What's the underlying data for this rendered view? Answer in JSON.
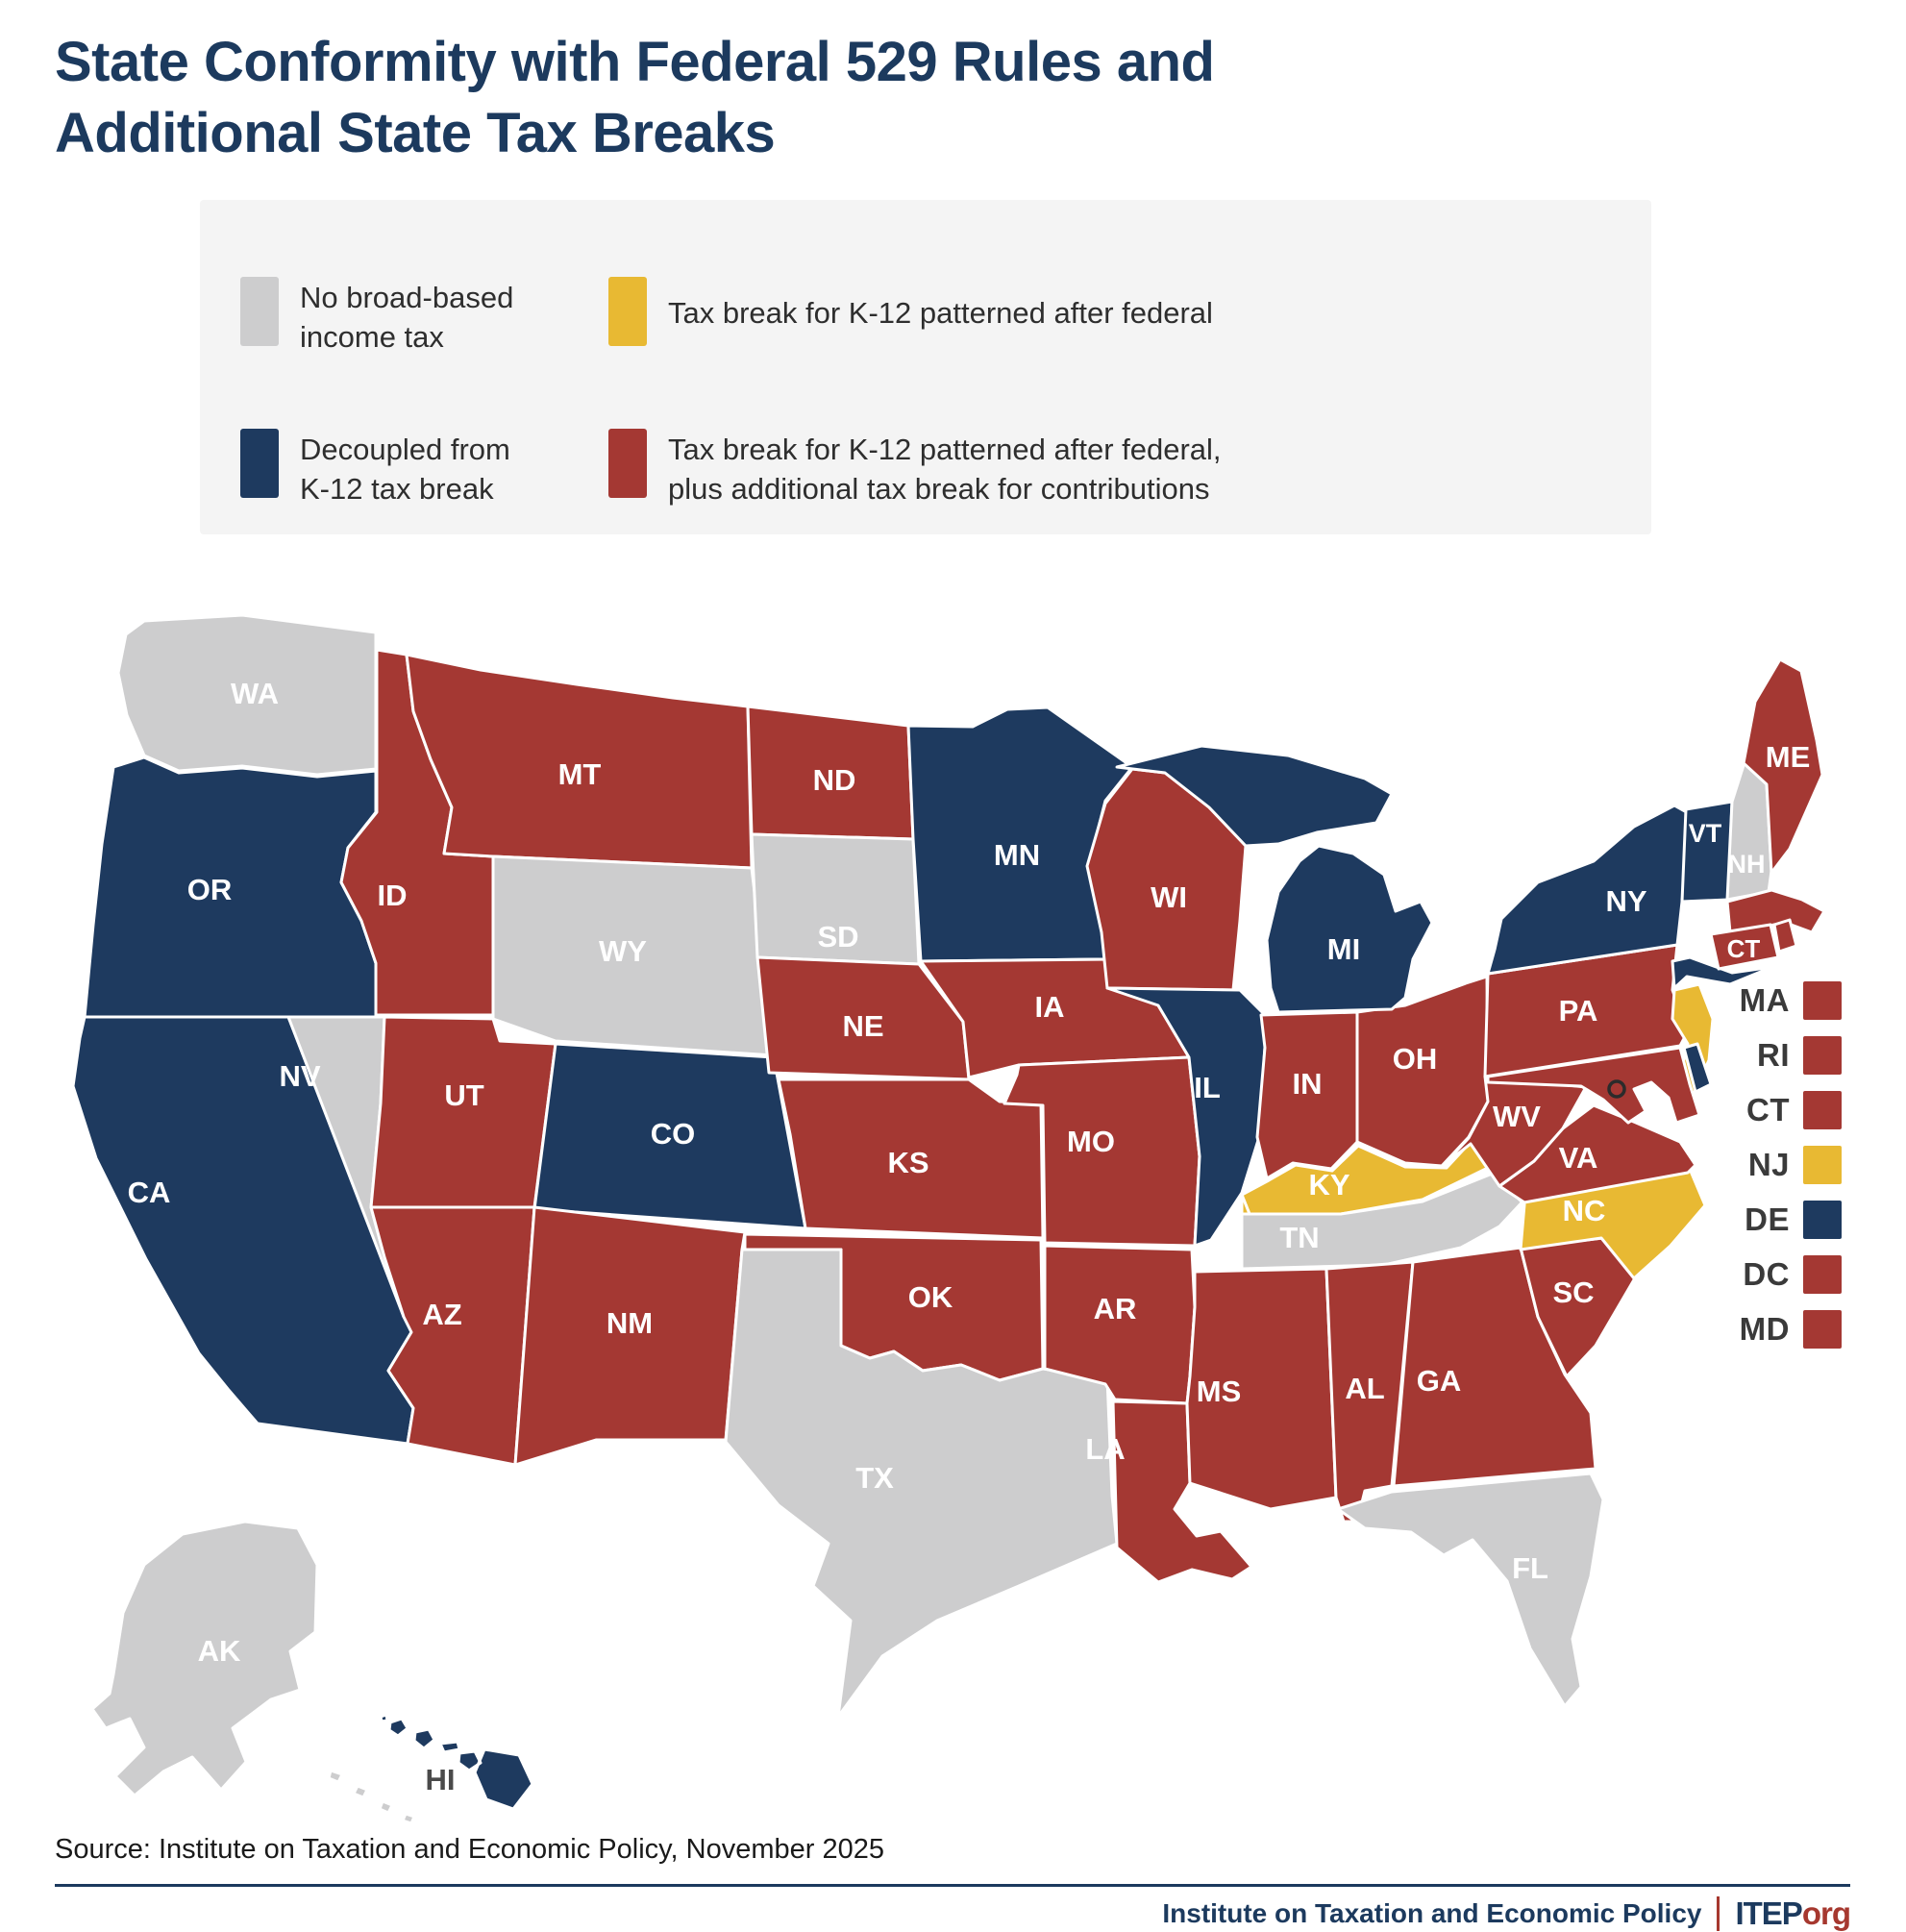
{
  "title": {
    "line1": "State Conformity with Federal 529 Rules and",
    "line2": "Additional State Tax Breaks"
  },
  "colors": {
    "no_income_tax": "#CDCDCE",
    "k12_federal": "#E8B933",
    "decoupled": "#1E3A5F",
    "k12_federal_plus": "#A43833",
    "legend_bg": "#F4F4F4",
    "title_navy": "#1C3A5E",
    "footer_red": "#A6382F",
    "label_white": "#FFFFFF",
    "label_dark": "#4A4A4A"
  },
  "legend": {
    "items": [
      {
        "key": "no_income_tax",
        "lines": [
          "No broad-based",
          "income tax"
        ]
      },
      {
        "key": "k12_federal",
        "lines": [
          "Tax break for K-12 patterned after federal"
        ]
      },
      {
        "key": "decoupled",
        "lines": [
          "Decoupled from",
          "K-12 tax break"
        ]
      },
      {
        "key": "k12_federal_plus",
        "lines": [
          "Tax break for K-12 patterned after federal,",
          "plus additional tax break for contributions"
        ]
      }
    ]
  },
  "map": {
    "states": [
      {
        "abbr": "WA",
        "category": "no_income_tax",
        "label": true
      },
      {
        "abbr": "OR",
        "category": "decoupled",
        "label": true
      },
      {
        "abbr": "CA",
        "category": "decoupled",
        "label": true
      },
      {
        "abbr": "NV",
        "category": "no_income_tax",
        "label": true
      },
      {
        "abbr": "ID",
        "category": "k12_federal_plus",
        "label": true
      },
      {
        "abbr": "MT",
        "category": "k12_federal_plus",
        "label": true
      },
      {
        "abbr": "WY",
        "category": "no_income_tax",
        "label": true
      },
      {
        "abbr": "UT",
        "category": "k12_federal_plus",
        "label": true
      },
      {
        "abbr": "CO",
        "category": "decoupled",
        "label": true
      },
      {
        "abbr": "AZ",
        "category": "k12_federal_plus",
        "label": true
      },
      {
        "abbr": "NM",
        "category": "k12_federal_plus",
        "label": true
      },
      {
        "abbr": "ND",
        "category": "k12_federal_plus",
        "label": true
      },
      {
        "abbr": "SD",
        "category": "no_income_tax",
        "label": true
      },
      {
        "abbr": "NE",
        "category": "k12_federal_plus",
        "label": true
      },
      {
        "abbr": "KS",
        "category": "k12_federal_plus",
        "label": true
      },
      {
        "abbr": "OK",
        "category": "k12_federal_plus",
        "label": true
      },
      {
        "abbr": "TX",
        "category": "no_income_tax",
        "label": true
      },
      {
        "abbr": "MN",
        "category": "decoupled",
        "label": true
      },
      {
        "abbr": "IA",
        "category": "k12_federal_plus",
        "label": true
      },
      {
        "abbr": "MO",
        "category": "k12_federal_plus",
        "label": true
      },
      {
        "abbr": "AR",
        "category": "k12_federal_plus",
        "label": true
      },
      {
        "abbr": "LA",
        "category": "k12_federal_plus",
        "label": true
      },
      {
        "abbr": "WI",
        "category": "k12_federal_plus",
        "label": true
      },
      {
        "abbr": "IL",
        "category": "decoupled",
        "label": true
      },
      {
        "abbr": "IN",
        "category": "k12_federal_plus",
        "label": true
      },
      {
        "abbr": "OH",
        "category": "k12_federal_plus",
        "label": true
      },
      {
        "abbr": "MI",
        "category": "decoupled",
        "label": true
      },
      {
        "abbr": "KY",
        "category": "k12_federal",
        "label": true
      },
      {
        "abbr": "TN",
        "category": "no_income_tax",
        "label": true
      },
      {
        "abbr": "MS",
        "category": "k12_federal_plus",
        "label": true
      },
      {
        "abbr": "AL",
        "category": "k12_federal_plus",
        "label": true
      },
      {
        "abbr": "GA",
        "category": "k12_federal_plus",
        "label": true
      },
      {
        "abbr": "SC",
        "category": "k12_federal_plus",
        "label": true
      },
      {
        "abbr": "FL",
        "category": "no_income_tax",
        "label": true
      },
      {
        "abbr": "NC",
        "category": "k12_federal",
        "label": true
      },
      {
        "abbr": "VA",
        "category": "k12_federal_plus",
        "label": true
      },
      {
        "abbr": "WV",
        "category": "k12_federal_plus",
        "label": true
      },
      {
        "abbr": "KY2",
        "category": "k12_federal",
        "label": false
      },
      {
        "abbr": "PA",
        "category": "k12_federal_plus",
        "label": true
      },
      {
        "abbr": "NY",
        "category": "decoupled",
        "label": true
      },
      {
        "abbr": "VT",
        "category": "decoupled",
        "label": true
      },
      {
        "abbr": "NH",
        "category": "no_income_tax",
        "label": true
      },
      {
        "abbr": "ME",
        "category": "k12_federal_plus",
        "label": true
      },
      {
        "abbr": "MA",
        "category": "k12_federal_plus",
        "label": false
      },
      {
        "abbr": "RI",
        "category": "k12_federal_plus",
        "label": false
      },
      {
        "abbr": "CT",
        "category": "k12_federal_plus",
        "label": true
      },
      {
        "abbr": "NJ",
        "category": "k12_federal",
        "label": false
      },
      {
        "abbr": "DE",
        "category": "decoupled",
        "label": false
      },
      {
        "abbr": "MD",
        "category": "k12_federal_plus",
        "label": false
      },
      {
        "abbr": "AK",
        "category": "no_income_tax",
        "label": true
      },
      {
        "abbr": "HI",
        "category": "decoupled",
        "label": true
      }
    ],
    "dc_marker": {
      "abbr": "DC",
      "category": "k12_federal_plus"
    }
  },
  "side_legend": [
    {
      "abbr": "MA",
      "category": "k12_federal_plus"
    },
    {
      "abbr": "RI",
      "category": "k12_federal_plus"
    },
    {
      "abbr": "CT",
      "category": "k12_federal_plus"
    },
    {
      "abbr": "NJ",
      "category": "k12_federal"
    },
    {
      "abbr": "DE",
      "category": "decoupled"
    },
    {
      "abbr": "DC",
      "category": "k12_federal_plus"
    },
    {
      "abbr": "MD",
      "category": "k12_federal_plus"
    }
  ],
  "source": "Source: Institute on Taxation and Economic Policy, November 2025",
  "footer": {
    "org": "Institute on Taxation and Economic Policy",
    "brand": "ITEP",
    "brand_suffix": "org"
  }
}
